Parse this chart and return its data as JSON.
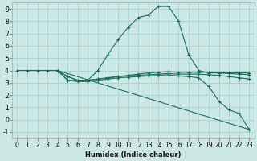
{
  "xlabel": "Humidex (Indice chaleur)",
  "ylabel": "",
  "bg_color": "#cce8e5",
  "grid_color": "#aacfcc",
  "line_color": "#1a6b5e",
  "xlim": [
    -0.5,
    23.5
  ],
  "ylim": [
    -1.5,
    9.5
  ],
  "xticks": [
    0,
    1,
    2,
    3,
    4,
    5,
    6,
    7,
    8,
    9,
    10,
    11,
    12,
    13,
    14,
    15,
    16,
    17,
    18,
    19,
    20,
    21,
    22,
    23
  ],
  "yticks": [
    -1,
    0,
    1,
    2,
    3,
    4,
    5,
    6,
    7,
    8,
    9
  ],
  "lines": [
    {
      "x": [
        0,
        1,
        2,
        3,
        4,
        5,
        6,
        7,
        8,
        9,
        10,
        11,
        12,
        13,
        14,
        15,
        16,
        17,
        18,
        19,
        20,
        21,
        22,
        23
      ],
      "y": [
        4.0,
        4.0,
        4.0,
        4.0,
        4.0,
        3.2,
        3.2,
        3.2,
        4.0,
        5.3,
        6.5,
        7.5,
        8.3,
        8.5,
        9.2,
        9.2,
        8.0,
        5.3,
        4.0,
        3.8,
        3.8,
        3.8,
        3.8,
        3.8
      ],
      "markers": true
    },
    {
      "x": [
        4,
        5,
        6,
        7,
        8,
        9,
        10,
        11,
        12,
        13,
        14,
        15,
        16,
        17,
        18,
        19,
        20,
        21,
        22,
        23
      ],
      "y": [
        4.0,
        3.5,
        3.2,
        3.2,
        3.3,
        3.4,
        3.5,
        3.6,
        3.7,
        3.8,
        3.85,
        3.9,
        3.85,
        3.85,
        3.85,
        3.85,
        3.8,
        3.75,
        3.7,
        3.65
      ],
      "markers": true
    },
    {
      "x": [
        4,
        5,
        6,
        7,
        8,
        9,
        10,
        11,
        12,
        13,
        14,
        15,
        16,
        17,
        18,
        19,
        20,
        21,
        22,
        23
      ],
      "y": [
        4.0,
        3.5,
        3.2,
        3.2,
        3.3,
        3.4,
        3.5,
        3.55,
        3.6,
        3.65,
        3.7,
        3.75,
        3.7,
        3.7,
        3.7,
        3.65,
        3.6,
        3.5,
        3.4,
        3.3
      ],
      "markers": true
    },
    {
      "x": [
        4,
        23
      ],
      "y": [
        4.0,
        -0.8
      ],
      "markers": true
    },
    {
      "x": [
        4,
        5,
        6,
        7,
        8,
        9,
        10,
        11,
        12,
        13,
        14,
        15,
        16,
        17,
        18,
        19,
        20,
        21,
        22,
        23
      ],
      "y": [
        4.0,
        3.2,
        3.1,
        3.1,
        3.2,
        3.3,
        3.4,
        3.45,
        3.5,
        3.55,
        3.6,
        3.65,
        3.55,
        3.5,
        3.4,
        2.7,
        1.5,
        0.8,
        0.5,
        -0.8
      ],
      "markers": true
    }
  ]
}
